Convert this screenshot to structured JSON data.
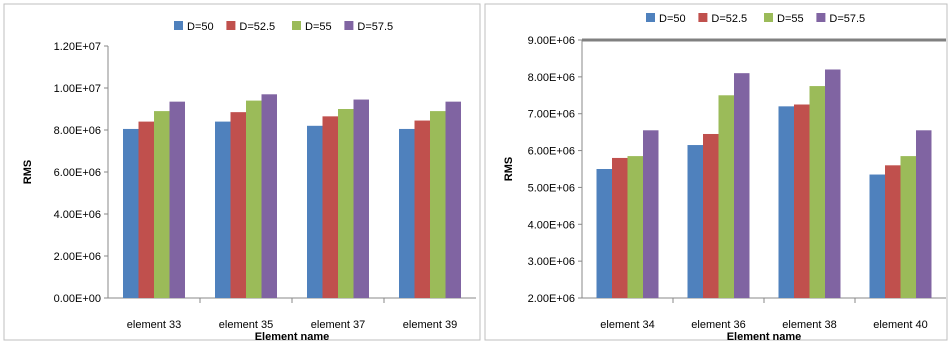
{
  "chart_data": [
    {
      "type": "bar",
      "title": "",
      "xlabel": "Element name",
      "ylabel": "RMS",
      "categories": [
        "element 33",
        "element 35",
        "element 37",
        "element 39"
      ],
      "yticks": [
        "0.00E+00",
        "2.00E+06",
        "4.00E+06",
        "6.00E+06",
        "8.00E+06",
        "1.00E+07",
        "1.20E+07"
      ],
      "ylim": [
        0,
        12000000
      ],
      "grid": false,
      "legend": "top",
      "series": [
        {
          "name": "D=50",
          "color": "#4F81BD",
          "values": [
            8050000,
            8400000,
            8200000,
            8050000
          ]
        },
        {
          "name": "D=52.5",
          "color": "#C0504D",
          "values": [
            8400000,
            8850000,
            8650000,
            8450000
          ]
        },
        {
          "name": "D=55",
          "color": "#9BBB59",
          "values": [
            8900000,
            9400000,
            9000000,
            8900000
          ]
        },
        {
          "name": "D=57.5",
          "color": "#8064A2",
          "values": [
            9350000,
            9700000,
            9450000,
            9350000
          ]
        }
      ]
    },
    {
      "type": "bar",
      "title": "",
      "xlabel": "Element name",
      "ylabel": "RMS",
      "categories": [
        "element 34",
        "element 36",
        "element 38",
        "element 40"
      ],
      "yticks": [
        "2.00E+06",
        "3.00E+06",
        "4.00E+06",
        "5.00E+06",
        "6.00E+06",
        "7.00E+06",
        "8.00E+06",
        "9.00E+06"
      ],
      "ylim": [
        2000000,
        9000000
      ],
      "grid": false,
      "legend": "top",
      "series": [
        {
          "name": "D=50",
          "color": "#4F81BD",
          "values": [
            5500000,
            6150000,
            7200000,
            5350000
          ]
        },
        {
          "name": "D=52.5",
          "color": "#C0504D",
          "values": [
            5800000,
            6450000,
            7250000,
            5600000
          ]
        },
        {
          "name": "D=55",
          "color": "#9BBB59",
          "values": [
            5850000,
            7500000,
            7750000,
            5850000
          ]
        },
        {
          "name": "D=57.5",
          "color": "#8064A2",
          "values": [
            6550000,
            8100000,
            8200000,
            6550000
          ]
        }
      ]
    }
  ]
}
